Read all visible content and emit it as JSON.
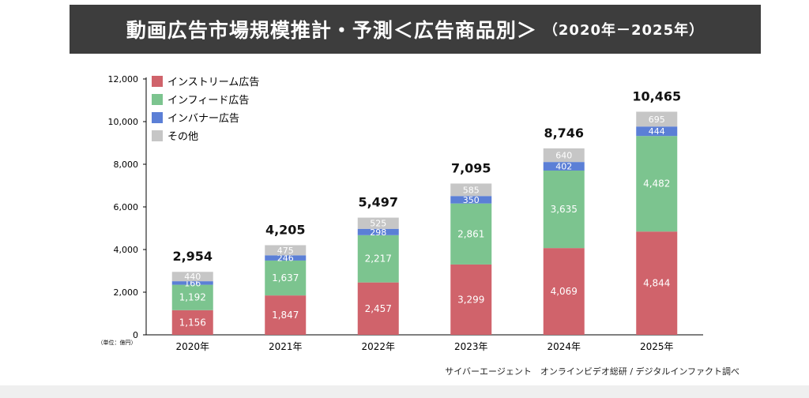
{
  "title": "動画広告市場規模推計・予測＜広告商品別＞",
  "title_period": "（2020年－2025年）",
  "unit_note": "（単位：億円）",
  "source": "サイバーエージェント　オンラインビデオ総研 / デジタルインファクト調べ",
  "colors": {
    "instream": "#d0636b",
    "infeed": "#7cc48f",
    "inbanner": "#5b7fd6",
    "other": "#c6c6c6"
  },
  "chart_data": {
    "type": "bar",
    "stacked": true,
    "categories": [
      "2020年",
      "2021年",
      "2022年",
      "2023年",
      "2024年",
      "2025年"
    ],
    "series": [
      {
        "name": "インストリーム広告",
        "values": [
          1156,
          1847,
          2457,
          3299,
          4069,
          4844
        ]
      },
      {
        "name": "インフィード広告",
        "values": [
          1192,
          1637,
          2217,
          2861,
          3635,
          4482
        ]
      },
      {
        "name": "インバナー広告",
        "values": [
          166,
          246,
          298,
          350,
          402,
          444
        ]
      },
      {
        "name": "その他",
        "values": [
          440,
          475,
          525,
          585,
          640,
          695
        ]
      }
    ],
    "series_labels": [
      [
        "1,156",
        "1,847",
        "2,457",
        "3,299",
        "4,069",
        "4,844"
      ],
      [
        "1,192",
        "1,637",
        "2,217",
        "2,861",
        "3,635",
        "4,482"
      ],
      [
        "166",
        "246",
        "298",
        "350",
        "402",
        "444"
      ],
      [
        "440",
        "475",
        "525",
        "585",
        "640",
        "695"
      ]
    ],
    "totals": [
      "2,954",
      "4,205",
      "5,497",
      "7,095",
      "8,746",
      "10,465"
    ],
    "ylim": [
      0,
      12000
    ],
    "yticks": [
      0,
      2000,
      4000,
      6000,
      8000,
      10000,
      12000
    ],
    "ytick_labels": [
      "0",
      "2,000",
      "4,000",
      "6,000",
      "8,000",
      "10,000",
      "12,000"
    ],
    "legend_position": "top-left",
    "grid": false
  }
}
